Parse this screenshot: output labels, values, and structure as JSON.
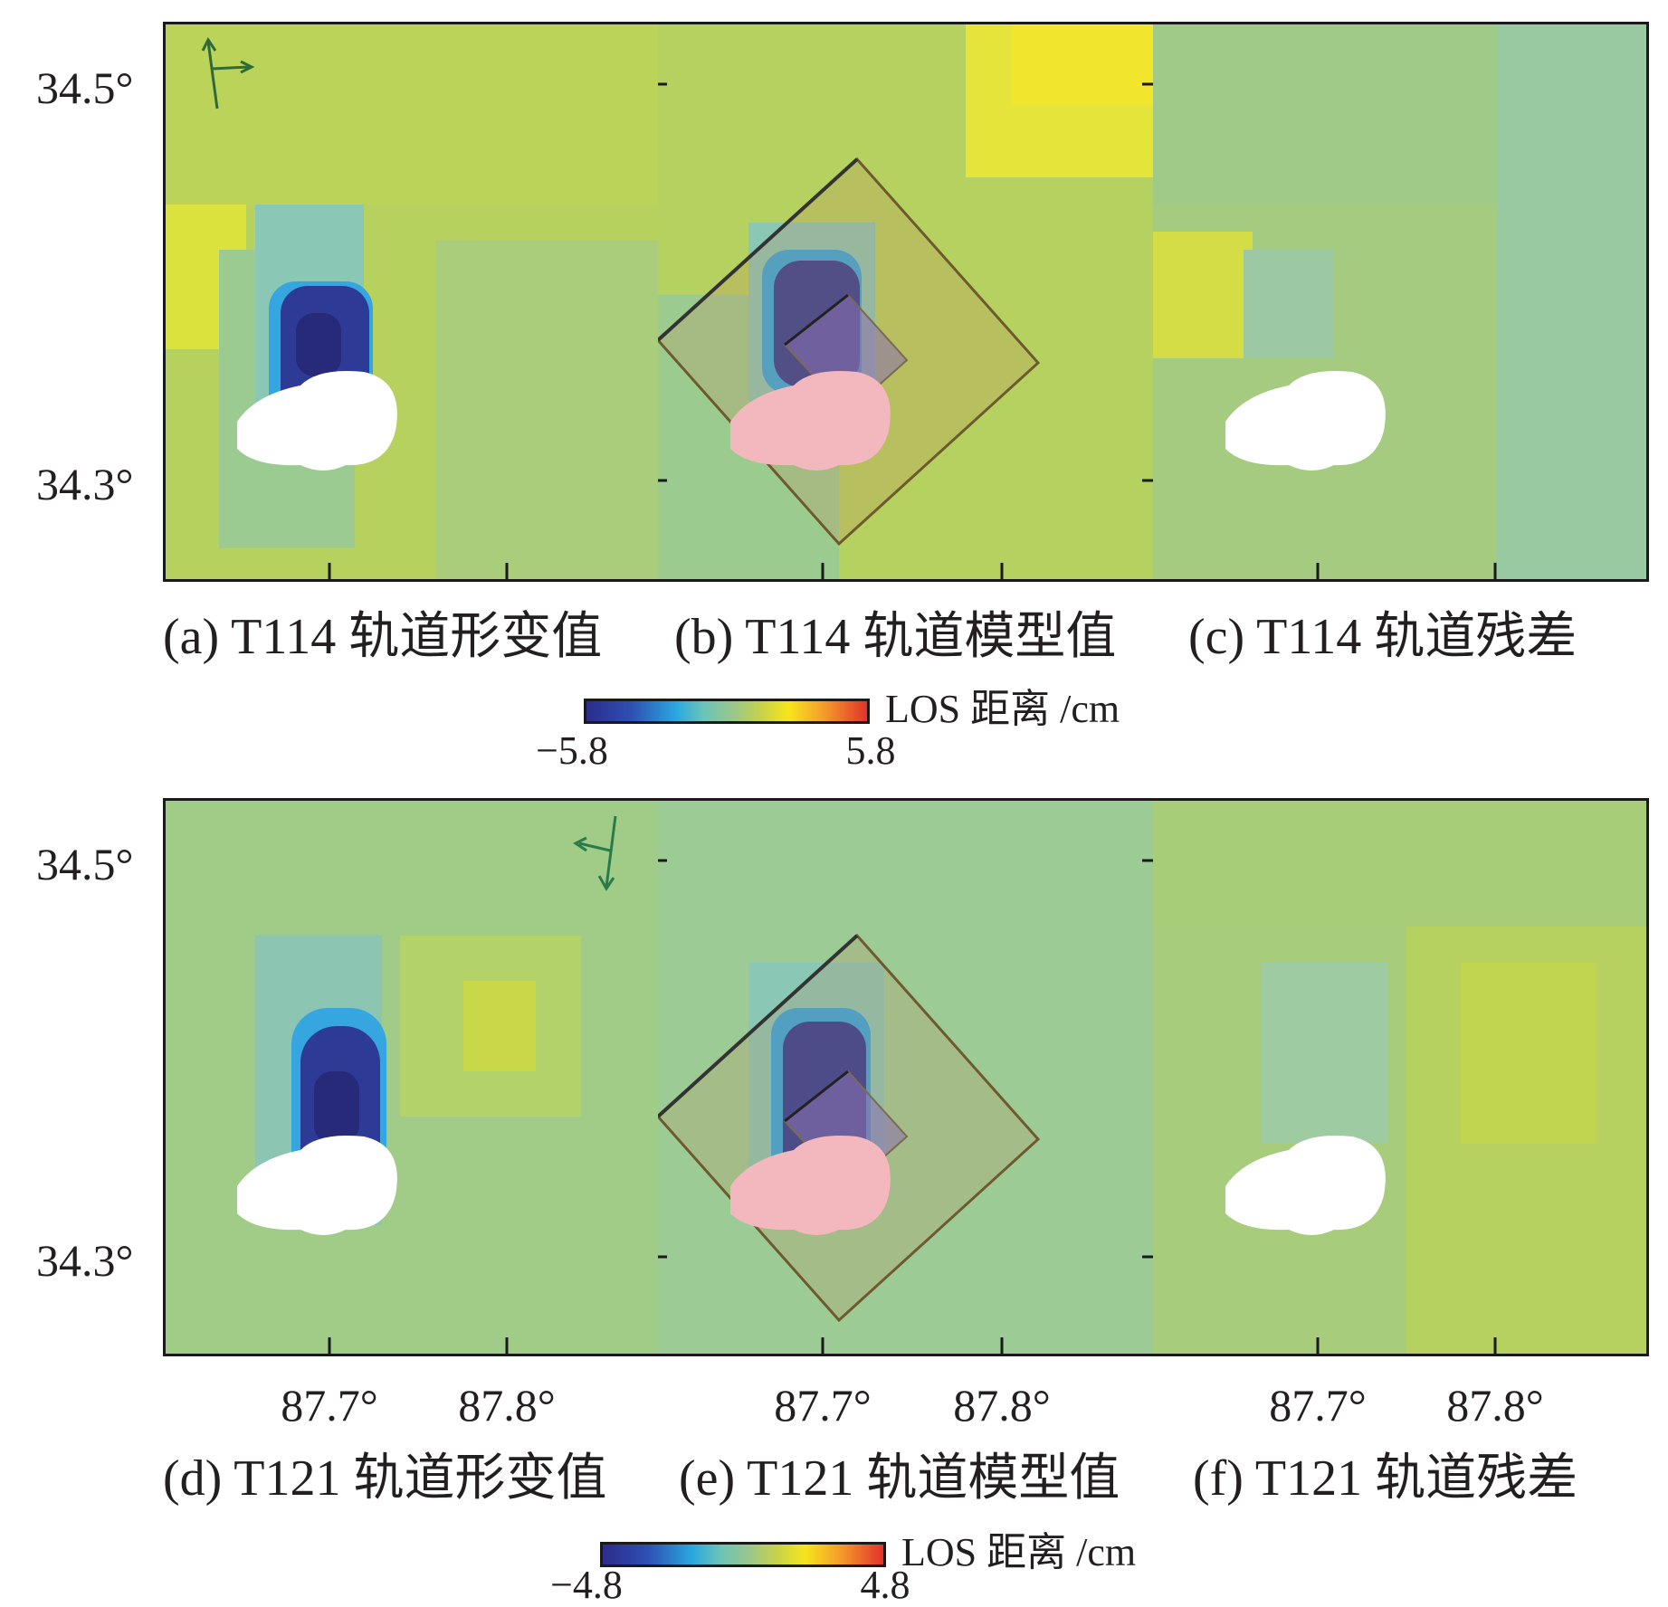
{
  "map_data": {
    "type": "insar-map-grid",
    "rows": [
      {
        "panels": [
          {
            "id": "a",
            "caption": "(a) T114 轨道形变值",
            "kind": "observed"
          },
          {
            "id": "b",
            "caption": "(b) T114 轨道模型值",
            "kind": "model"
          },
          {
            "id": "c",
            "caption": "(c) T114 轨道残差",
            "kind": "residual"
          }
        ],
        "y_ticks": [
          "34.5°",
          "34.3°"
        ],
        "colorbar": {
          "label": "LOS 距离 /cm",
          "min": "−5.8",
          "max": "5.8",
          "colors": [
            "#2c2d8c",
            "#29a8e0",
            "#98c78c",
            "#f6e51c",
            "#e2332a"
          ]
        }
      },
      {
        "panels": [
          {
            "id": "d",
            "caption": "(d) T121 轨道形变值",
            "kind": "observed"
          },
          {
            "id": "e",
            "caption": "(e) T121 轨道模型值",
            "kind": "model"
          },
          {
            "id": "f",
            "caption": "(f) T121 轨道残差",
            "kind": "residual"
          }
        ],
        "y_ticks": [
          "34.5°",
          "34.3°"
        ],
        "colorbar": {
          "label": "LOS 距离 /cm",
          "min": "−4.8",
          "max": "4.8",
          "colors": [
            "#2c2d8c",
            "#29a8e0",
            "#98c78c",
            "#f6e51c",
            "#e2332a"
          ]
        }
      }
    ],
    "x_ticks": [
      "87.7°",
      "87.8°"
    ],
    "colors": {
      "background_top": "#b9d35a",
      "background_bottom": "#9fcb8e",
      "deformation_low": "#2c2d8c",
      "mask": "#ffffff",
      "mask_model": "#f2b8be",
      "fault_plane": "#b47a4a"
    }
  }
}
